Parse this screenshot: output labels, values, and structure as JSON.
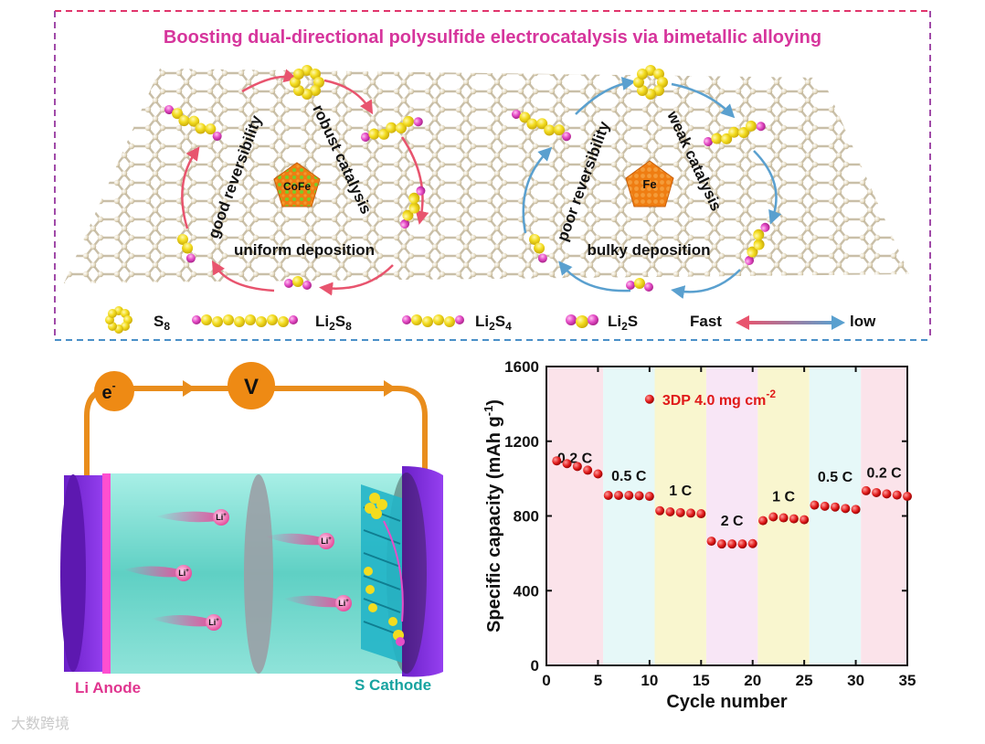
{
  "figure": {
    "title": "Boosting dual-directional polysulfide electrocatalysis via bimetallic alloying",
    "left_catalyst": "CoFe",
    "right_catalyst": "Fe",
    "left_labels": {
      "reversibility": "good reversibility",
      "catalysis": "robust catalysis",
      "deposition": "uniform deposition"
    },
    "right_labels": {
      "reversibility": "poor reversibility",
      "catalysis": "weak catalysis",
      "deposition": "bulky deposition"
    },
    "legend": {
      "s8": "S",
      "s8_sub": "8",
      "li2s8_a": "Li",
      "li2s8_b": "2",
      "li2s8_c": "S",
      "li2s8_d": "8",
      "li2s4_a": "Li",
      "li2s4_b": "2",
      "li2s4_c": "S",
      "li2s4_d": "4",
      "li2s_a": "Li",
      "li2s_b": "2",
      "li2s_c": "S",
      "fast": "Fast",
      "low": "low"
    },
    "colors": {
      "fast_arrow": "#e8546e",
      "slow_arrow": "#5aa0cf",
      "sulfur": "#f3dc1f",
      "lithium": "#e64ec8",
      "border_top": "#e0356c",
      "border_bottom": "#4a90c8"
    }
  },
  "battery": {
    "electron": "e",
    "electron_sup": "-",
    "voltmeter": "V",
    "li_ion": "Li",
    "li_ion_sup": "+",
    "anode_label": "Li Anode",
    "cathode_label": "S Cathode"
  },
  "watermark": "大数跨境",
  "chart_data": {
    "type": "scatter",
    "ylabel_main": "Specific capacity (mAh g",
    "ylabel_sup": "-1",
    "ylabel_end": ")",
    "xlabel": "Cycle number",
    "xlim": [
      0,
      35
    ],
    "ylim": [
      0,
      1600
    ],
    "xticks": [
      "0",
      "5",
      "10",
      "15",
      "20",
      "25",
      "30",
      "35"
    ],
    "yticks": [
      "0",
      "400",
      "800",
      "1200",
      "1600"
    ],
    "legend_main": "3DP 4.0 mg cm",
    "legend_sup": "-2",
    "regions": [
      {
        "label": "0.2 C",
        "from": 0,
        "to": 5.5,
        "color": "#fbe3ea"
      },
      {
        "label": "0.5 C",
        "from": 5.5,
        "to": 10.5,
        "color": "#e6f8f8"
      },
      {
        "label": "1 C",
        "from": 10.5,
        "to": 15.5,
        "color": "#f9f6cf"
      },
      {
        "label": "2 C",
        "from": 15.5,
        "to": 20.5,
        "color": "#f8e6f6"
      },
      {
        "label": "1 C",
        "from": 20.5,
        "to": 25.5,
        "color": "#f9f6cf"
      },
      {
        "label": "0.5 C",
        "from": 25.5,
        "to": 30.5,
        "color": "#e6f8f8"
      },
      {
        "label": "0.2 C",
        "from": 30.5,
        "to": 35,
        "color": "#fbe3ea"
      }
    ],
    "points": [
      [
        1,
        1095
      ],
      [
        2,
        1080
      ],
      [
        3,
        1065
      ],
      [
        4,
        1045
      ],
      [
        5,
        1025
      ],
      [
        6,
        910
      ],
      [
        7,
        910
      ],
      [
        8,
        910
      ],
      [
        9,
        908
      ],
      [
        10,
        905
      ],
      [
        11,
        828
      ],
      [
        12,
        822
      ],
      [
        13,
        818
      ],
      [
        14,
        815
      ],
      [
        15,
        812
      ],
      [
        16,
        665
      ],
      [
        17,
        650
      ],
      [
        18,
        650
      ],
      [
        19,
        650
      ],
      [
        20,
        652
      ],
      [
        21,
        775
      ],
      [
        22,
        795
      ],
      [
        23,
        790
      ],
      [
        24,
        785
      ],
      [
        25,
        780
      ],
      [
        26,
        858
      ],
      [
        27,
        852
      ],
      [
        28,
        848
      ],
      [
        29,
        840
      ],
      [
        30,
        835
      ],
      [
        31,
        935
      ],
      [
        32,
        925
      ],
      [
        33,
        918
      ],
      [
        34,
        912
      ],
      [
        35,
        905
      ]
    ],
    "marker_color": "#e01919"
  }
}
